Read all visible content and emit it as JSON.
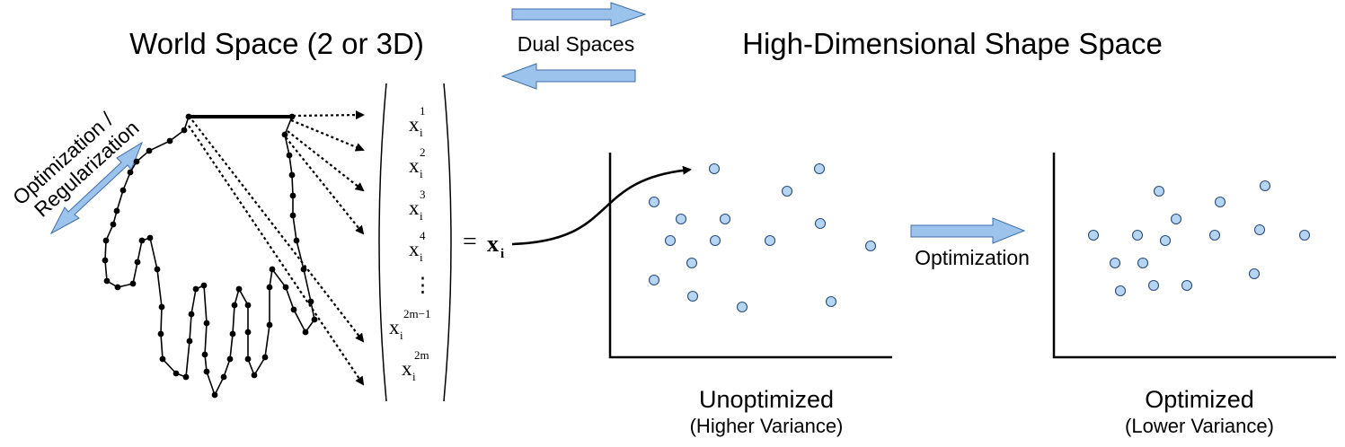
{
  "titles": {
    "world_space": "World Space (2 or 3D)",
    "dual_spaces": "Dual Spaces",
    "shape_space": "High-Dimensional Shape Space"
  },
  "left_arrow_label": {
    "line1": "Optimization /",
    "line2": "Regularization"
  },
  "vector": {
    "entries": [
      {
        "base": "x",
        "sup": "1",
        "sub": "i"
      },
      {
        "base": "x",
        "sup": "2",
        "sub": "i"
      },
      {
        "base": "x",
        "sup": "3",
        "sub": "i"
      },
      {
        "base": "x",
        "sup": "4",
        "sub": "i"
      },
      {
        "base": "x",
        "sup": "2m−1",
        "sub": "i"
      },
      {
        "base": "x",
        "sup": "2m",
        "sub": "i"
      }
    ],
    "ellipsis": "⋮",
    "equals": "=",
    "result_base": "x",
    "result_sub": "i"
  },
  "middle_arrow_label": "Optimization",
  "plots": {
    "unoptimized": {
      "title": "Unoptimized",
      "subtitle": "(Higher Variance)"
    },
    "optimized": {
      "title": "Optimized",
      "subtitle": "(Lower Variance)"
    }
  },
  "colors": {
    "arrow_fill": "#9cc3ec",
    "arrow_stroke": "#3f6fa8",
    "dot_fill": "#b5d5f3",
    "dot_stroke": "#2c4d7a",
    "ink": "#000000"
  }
}
